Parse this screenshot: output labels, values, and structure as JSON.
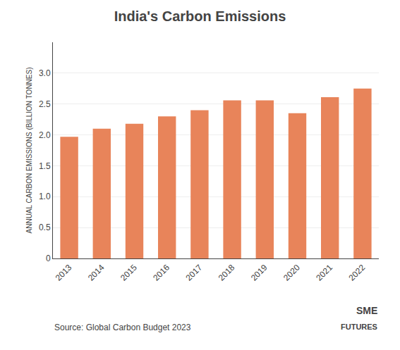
{
  "chart_data": {
    "type": "bar",
    "title": "India's Carbon Emissions",
    "ylabel": "ANNUAL CARBON EMISSIONS (BILLION TONNES)",
    "annotations": [
      "Source: Global Carbon Budget 2023",
      "SME",
      "FUTURES"
    ],
    "categories": [
      "2013",
      "2014",
      "2015",
      "2016",
      "2017",
      "2018",
      "2019",
      "2020",
      "2021",
      "2022"
    ],
    "values": [
      1.97,
      2.1,
      2.18,
      2.3,
      2.4,
      2.56,
      2.56,
      2.35,
      2.61,
      2.75
    ],
    "color": "#E8845A",
    "ylim": [
      0,
      3.5
    ],
    "yticks": [
      0,
      0.5,
      {
        "value": 1,
        "label": "1.0"
      },
      1.5,
      {
        "value": 2,
        "label": "2.0"
      },
      2.5,
      {
        "value": 3,
        "label": "3.0"
      }
    ],
    "grid": true
  }
}
